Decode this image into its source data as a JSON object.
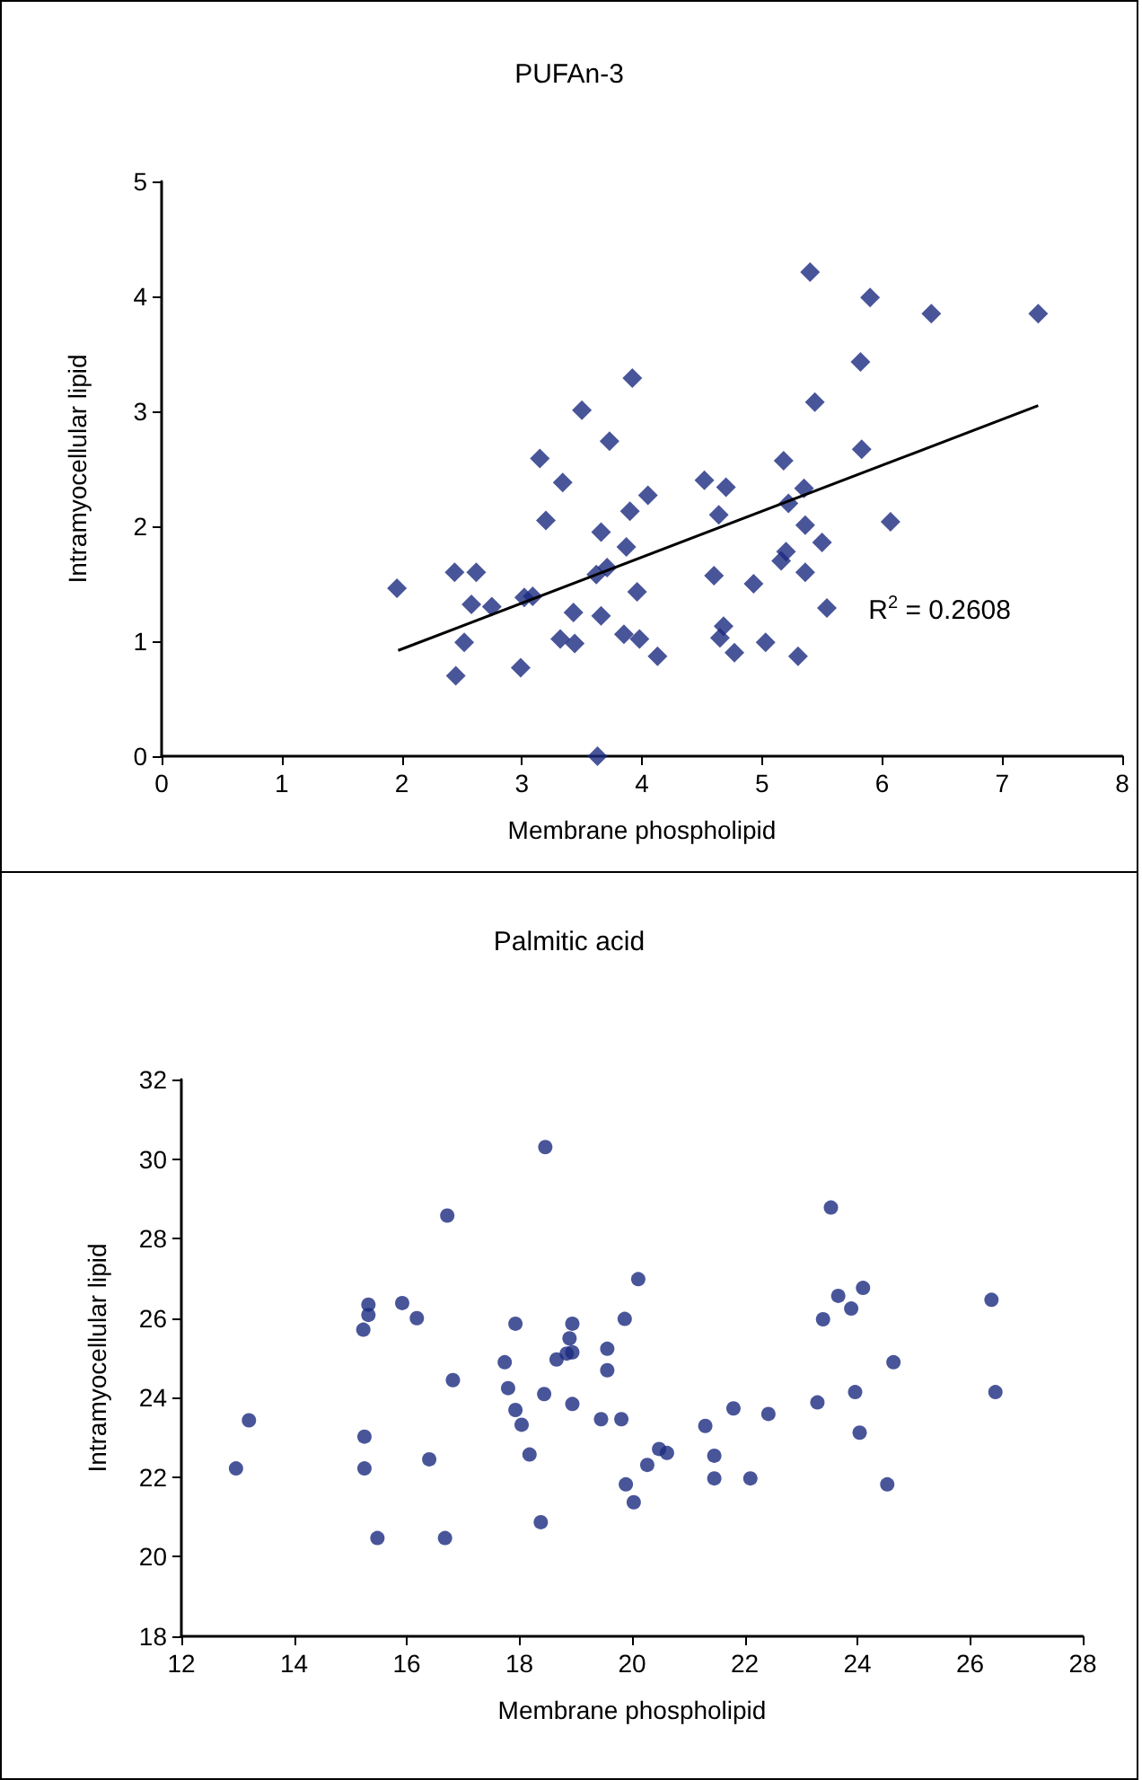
{
  "chart_data": [
    {
      "type": "scatter",
      "title": "PUFAn-3",
      "xlabel": "Membrane phospholipid",
      "ylabel": "Intramyocellular lipid",
      "xlim": [
        0,
        8
      ],
      "ylim": [
        0,
        5
      ],
      "xticks": [
        0,
        1,
        2,
        3,
        4,
        5,
        6,
        7,
        8
      ],
      "yticks": [
        0,
        1,
        2,
        3,
        4,
        5
      ],
      "marker": "diamond",
      "annotations": [
        "R$^{2}$ = 0.2608"
      ],
      "series": [
        {
          "color": "#1c2a80",
          "x": [
            1.96,
            2.44,
            2.62,
            2.58,
            2.75,
            2.52,
            2.45,
            2.99,
            3.02,
            3.09,
            3.15,
            3.2,
            3.34,
            3.5,
            3.73,
            3.92,
            3.32,
            3.44,
            3.43,
            3.66,
            3.62,
            3.71,
            3.66,
            3.9,
            3.87,
            3.96,
            3.85,
            3.98,
            3.63,
            4.05,
            4.13,
            4.52,
            4.7,
            4.64,
            4.6,
            4.68,
            4.65,
            4.77,
            4.93,
            5.03,
            5.18,
            5.22,
            5.35,
            5.36,
            5.5,
            5.2,
            5.16,
            5.36,
            5.54,
            5.3,
            5.4,
            5.44,
            5.82,
            5.83,
            5.9,
            6.07,
            6.41,
            7.3
          ],
          "values": [
            1.46,
            1.6,
            1.6,
            1.32,
            1.3,
            0.99,
            0.7,
            0.77,
            1.38,
            1.39,
            2.59,
            2.05,
            2.38,
            3.01,
            2.74,
            3.29,
            1.02,
            0.98,
            1.25,
            1.22,
            1.58,
            1.64,
            1.95,
            2.13,
            1.82,
            1.43,
            1.06,
            1.02,
            0.0,
            2.27,
            0.87,
            2.4,
            2.34,
            2.1,
            1.57,
            1.13,
            1.03,
            0.9,
            1.5,
            0.99,
            2.57,
            2.2,
            2.33,
            2.01,
            1.86,
            1.78,
            1.7,
            1.6,
            1.29,
            0.87,
            4.21,
            3.08,
            3.43,
            2.67,
            3.99,
            2.04,
            3.85,
            3.85
          ]
        },
        {
          "type": "line",
          "color": "#000000",
          "marker": "none",
          "x": [
            1.97,
            7.3
          ],
          "values": [
            0.92,
            3.05
          ]
        }
      ]
    },
    {
      "type": "scatter",
      "title": "Palmitic acid",
      "xlabel": "Membrane phospholipid",
      "ylabel": "Intramyocellular lipid",
      "xlim": [
        12,
        28
      ],
      "ylim": [
        18,
        32
      ],
      "xticks": [
        12,
        14,
        16,
        18,
        20,
        22,
        24,
        26,
        28
      ],
      "yticks": [
        18,
        20,
        22,
        24,
        26,
        28,
        30,
        32
      ],
      "marker": "circle",
      "series": [
        {
          "color": "#1c2a80",
          "x": [
            12.97,
            13.2,
            15.25,
            15.25,
            15.32,
            15.32,
            15.23,
            15.48,
            15.92,
            16.18,
            16.4,
            16.72,
            16.82,
            16.68,
            17.74,
            17.8,
            17.93,
            17.93,
            18.04,
            18.18,
            18.38,
            18.46,
            18.44,
            18.66,
            18.84,
            18.94,
            18.94,
            18.94,
            18.89,
            19.45,
            19.56,
            19.56,
            19.81,
            19.87,
            19.89,
            20.03,
            20.11,
            20.27,
            20.48,
            20.62,
            21.3,
            21.46,
            21.46,
            21.8,
            22.1,
            22.42,
            23.29,
            23.39,
            23.53,
            23.66,
            23.89,
            24.1,
            23.96,
            24.04,
            24.53,
            24.64,
            26.38,
            26.45
          ],
          "values": [
            22.22,
            23.43,
            23.02,
            22.22,
            26.34,
            26.08,
            25.71,
            20.47,
            26.38,
            26.0,
            22.45,
            28.58,
            24.44,
            20.47,
            24.89,
            24.24,
            25.86,
            23.69,
            23.32,
            22.57,
            20.87,
            30.3,
            24.09,
            24.96,
            25.11,
            25.86,
            25.14,
            23.84,
            25.49,
            23.46,
            25.23,
            24.69,
            23.46,
            25.98,
            21.82,
            21.37,
            26.98,
            22.31,
            22.71,
            22.61,
            23.29,
            22.54,
            21.97,
            23.73,
            21.97,
            23.59,
            23.88,
            25.97,
            28.78,
            26.56,
            26.24,
            26.76,
            24.14,
            23.12,
            21.82,
            24.89,
            26.46,
            24.14
          ]
        }
      ]
    }
  ]
}
